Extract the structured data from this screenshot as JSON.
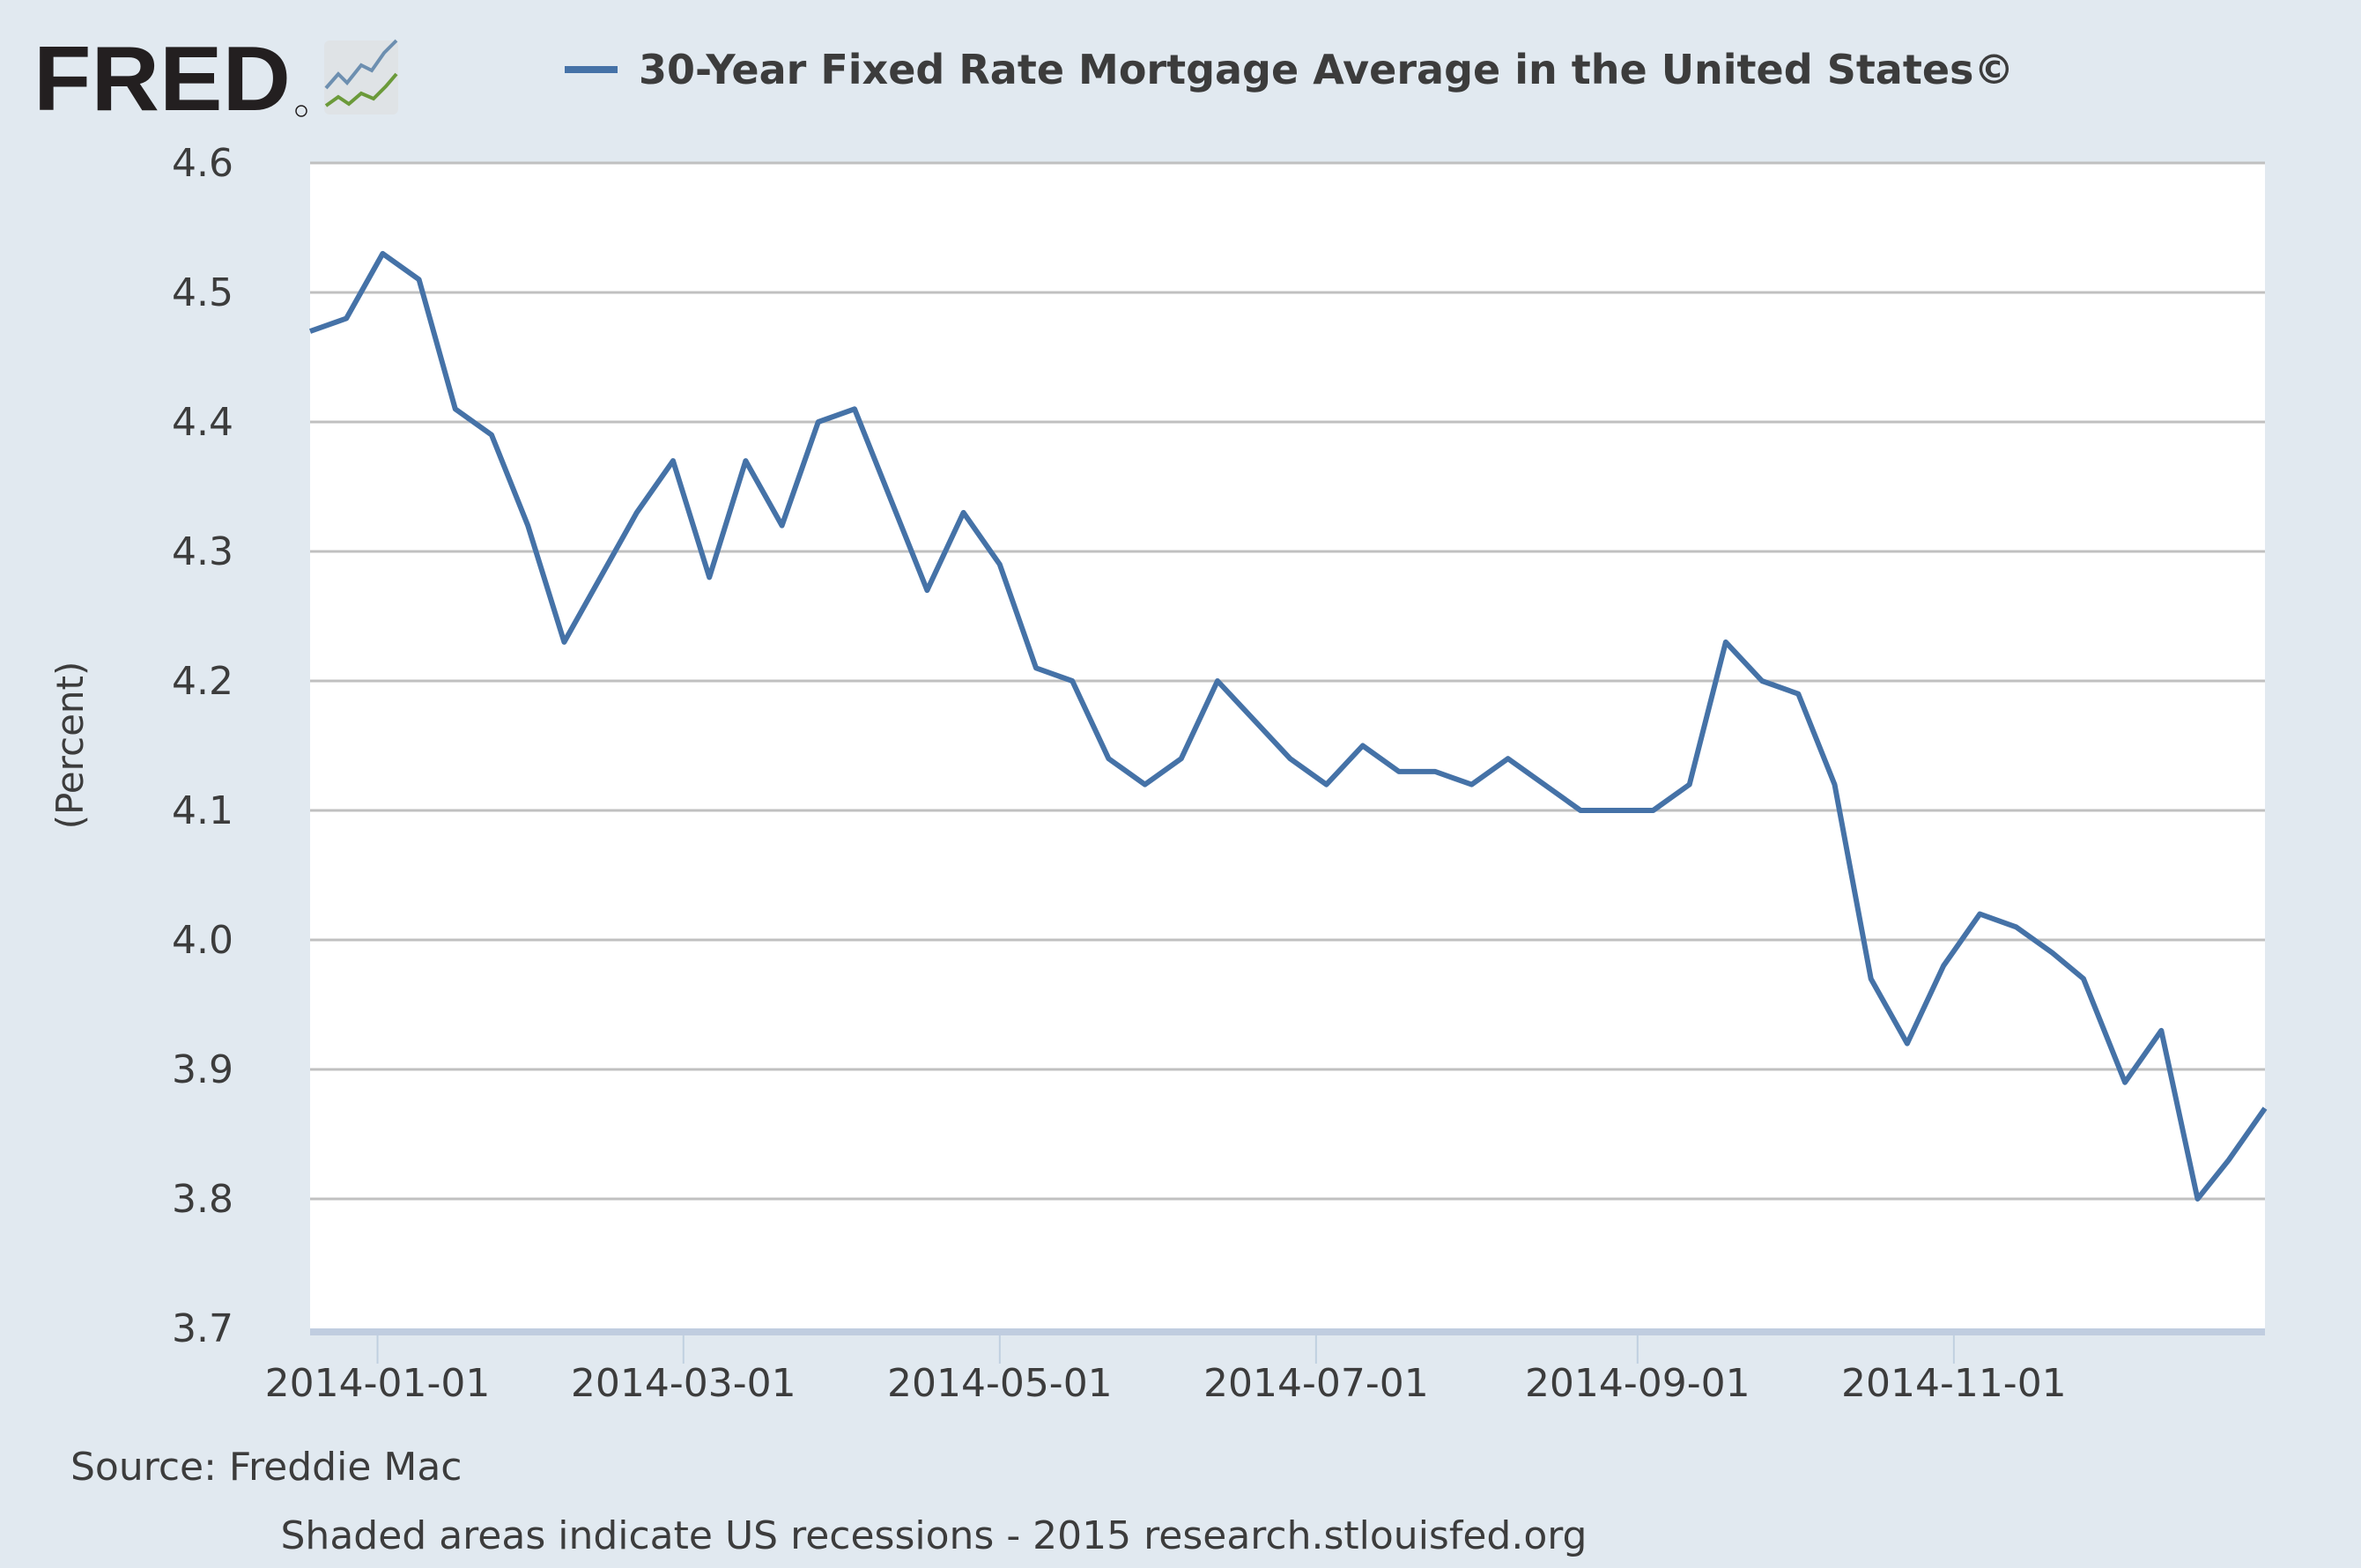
{
  "logo": {
    "text": "FRED"
  },
  "chart_data": {
    "type": "line",
    "title": "30-Year Fixed Rate Mortgage Average in the United States©",
    "ylabel": "(Percent)",
    "xlabel": "",
    "ylim": [
      3.7,
      4.6
    ],
    "yticks": [
      "3.7",
      "3.8",
      "3.9",
      "4.0",
      "4.1",
      "4.2",
      "4.3",
      "4.4",
      "4.5",
      "4.6"
    ],
    "xlim": [
      "2013-12-19",
      "2014-12-31"
    ],
    "xticks": [
      "2014-01-01",
      "2014-03-01",
      "2014-05-01",
      "2014-07-01",
      "2014-09-01",
      "2014-11-01"
    ],
    "grid": true,
    "legend": "top",
    "color": "#4572a7",
    "series": [
      {
        "name": "30-Year Fixed Rate Mortgage Average in the United States©",
        "x": [
          "2013-12-19",
          "2013-12-26",
          "2014-01-02",
          "2014-01-09",
          "2014-01-16",
          "2014-01-23",
          "2014-01-30",
          "2014-02-06",
          "2014-02-13",
          "2014-02-20",
          "2014-02-27",
          "2014-03-06",
          "2014-03-13",
          "2014-03-20",
          "2014-03-27",
          "2014-04-03",
          "2014-04-10",
          "2014-04-17",
          "2014-04-24",
          "2014-05-01",
          "2014-05-08",
          "2014-05-15",
          "2014-05-22",
          "2014-05-29",
          "2014-06-05",
          "2014-06-12",
          "2014-06-19",
          "2014-06-26",
          "2014-07-03",
          "2014-07-10",
          "2014-07-17",
          "2014-07-24",
          "2014-07-31",
          "2014-08-07",
          "2014-08-14",
          "2014-08-21",
          "2014-08-28",
          "2014-09-04",
          "2014-09-11",
          "2014-09-18",
          "2014-09-25",
          "2014-10-02",
          "2014-10-09",
          "2014-10-16",
          "2014-10-23",
          "2014-10-30",
          "2014-11-06",
          "2014-11-13",
          "2014-11-20",
          "2014-11-26",
          "2014-12-04",
          "2014-12-11",
          "2014-12-18",
          "2014-12-24",
          "2014-12-31"
        ],
        "values": [
          4.47,
          4.48,
          4.53,
          4.51,
          4.41,
          4.39,
          4.32,
          4.23,
          4.28,
          4.33,
          4.37,
          4.28,
          4.37,
          4.32,
          4.4,
          4.41,
          4.34,
          4.27,
          4.33,
          4.29,
          4.21,
          4.2,
          4.14,
          4.12,
          4.14,
          4.2,
          4.17,
          4.14,
          4.12,
          4.15,
          4.13,
          4.13,
          4.12,
          4.14,
          4.12,
          4.1,
          4.1,
          4.1,
          4.12,
          4.23,
          4.2,
          4.19,
          4.12,
          3.97,
          3.92,
          3.98,
          4.02,
          4.01,
          3.99,
          3.97,
          3.89,
          3.93,
          3.8,
          3.83,
          3.87
        ]
      }
    ]
  },
  "source": "Source: Freddie Mac",
  "footer": "Shaded areas indicate US recessions - 2015 research.stlouisfed.org"
}
